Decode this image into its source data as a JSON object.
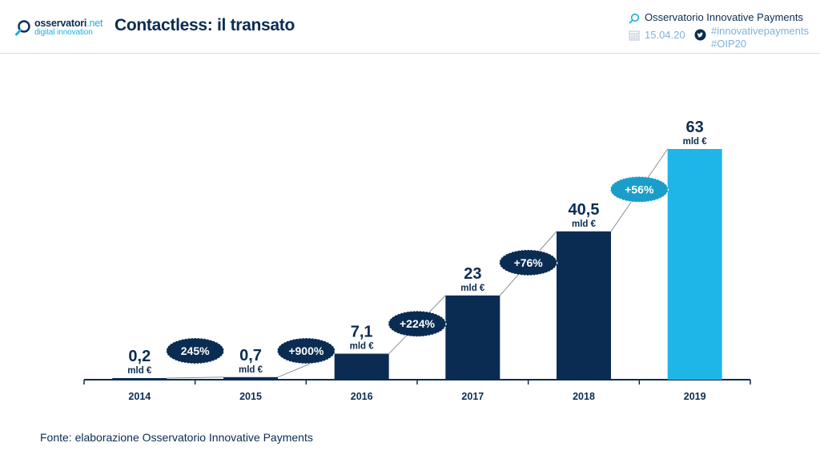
{
  "header": {
    "logo_brand": "osservatori",
    "logo_tld": ".net",
    "logo_sub": "digital innovation",
    "title": "Contactless: il transato",
    "observatory": "Osservatorio Innovative Payments",
    "date": "15.04.20",
    "hashtag1": "#innovativepayments",
    "hashtag2": "#OIP20"
  },
  "chart_data": {
    "type": "bar",
    "title": "Contactless: il transato",
    "xlabel": "",
    "ylabel": "",
    "unit": "mld €",
    "categories": [
      "2014",
      "2015",
      "2016",
      "2017",
      "2018",
      "2019"
    ],
    "values": [
      0.2,
      0.7,
      7.1,
      23,
      40.5,
      63
    ],
    "value_labels": [
      "0,2",
      "0,7",
      "7,1",
      "23",
      "40,5",
      "63"
    ],
    "growth_labels": [
      "245%",
      "+900%",
      "+224%",
      "+76%",
      "+56%"
    ],
    "ylim": [
      0,
      63
    ],
    "grid": false,
    "colors": {
      "bar": "#0b2c52",
      "highlight": "#1eb6e8",
      "badge": "#0b2c52",
      "badge_highlight": "#1a9ec9",
      "text": "#0b2c52"
    },
    "highlight_index": 5
  },
  "footer": {
    "source": "Fonte: elaborazione Osservatorio Innovative Payments"
  }
}
